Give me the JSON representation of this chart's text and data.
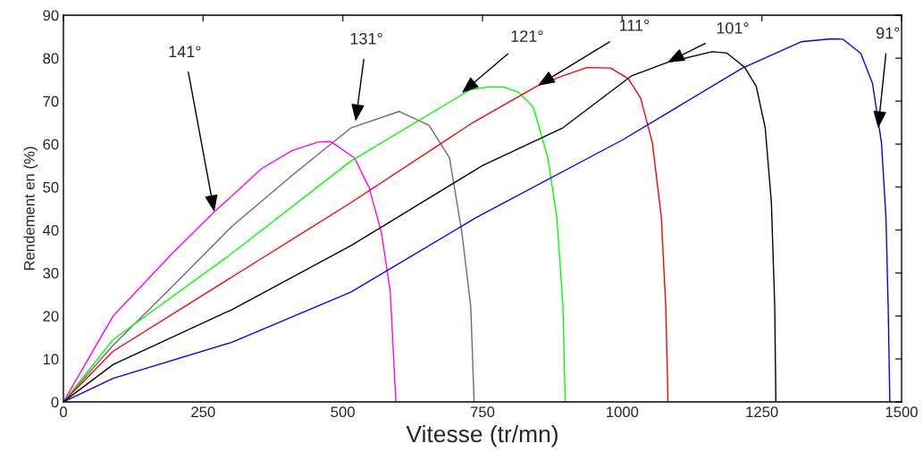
{
  "chart_data": {
    "type": "line",
    "xlabel": "Vitesse (tr/mn)",
    "ylabel": "Rendement en (%)",
    "xlim": [
      0,
      1500
    ],
    "ylim": [
      0,
      90
    ],
    "xticks": [
      0,
      250,
      500,
      750,
      1000,
      1250,
      1500
    ],
    "yticks": [
      0,
      10,
      20,
      30,
      40,
      50,
      60,
      70,
      80,
      90
    ],
    "grid": false,
    "legend": false,
    "marker": "none",
    "line_style": "solid",
    "series": [
      {
        "color": "#ff00ff",
        "x": [
          0,
          89,
          196,
          270,
          355,
          409,
          457,
          478,
          521,
          547,
          569,
          585,
          595
        ],
        "values": [
          0,
          20,
          34.7,
          44.2,
          54.3,
          58.5,
          60.5,
          60.6,
          56.8,
          49.9,
          39.5,
          25.6,
          0
        ]
      },
      {
        "color": "#7f5f7f",
        "x": [
          0,
          89,
          196,
          302,
          409,
          515,
          601,
          654,
          691,
          713,
          729,
          735
        ],
        "values": [
          0,
          13.2,
          27,
          40.9,
          52.7,
          63.8,
          67.6,
          64.4,
          56.8,
          39.5,
          22.2,
          0
        ]
      },
      {
        "color": "#00ff00",
        "x": [
          0,
          89,
          302,
          515,
          729,
          761,
          787,
          814,
          841,
          867,
          883,
          894,
          898
        ],
        "values": [
          0,
          14.5,
          34.6,
          56.1,
          72.7,
          73.3,
          73.3,
          72.1,
          68.6,
          56.8,
          43,
          22.2,
          0
        ]
      },
      {
        "color": "#ff0000",
        "x": [
          0,
          89,
          302,
          515,
          734,
          849,
          894,
          937,
          979,
          1011,
          1033,
          1054,
          1070,
          1078,
          1082
        ],
        "values": [
          0,
          11.8,
          29.1,
          46.4,
          65.1,
          73.6,
          75.9,
          77.8,
          77.7,
          75.2,
          70.7,
          60.3,
          43,
          22.2,
          0
        ]
      },
      {
        "color": "#000000",
        "x": [
          0,
          89,
          302,
          515,
          750,
          894,
          1017,
          1081,
          1161,
          1187,
          1219,
          1240,
          1256,
          1267,
          1273,
          1275
        ],
        "values": [
          0,
          8.7,
          21.5,
          36.4,
          55,
          63.8,
          75.9,
          79,
          81.5,
          81.2,
          77.9,
          73.4,
          63.7,
          46.4,
          22.2,
          0
        ]
      },
      {
        "color": "#0000ff",
        "x": [
          0,
          89,
          302,
          515,
          740,
          1001,
          1214,
          1320,
          1374,
          1395,
          1427,
          1448,
          1464,
          1472,
          1476,
          1479
        ],
        "values": [
          0,
          5.5,
          13.9,
          25.6,
          43,
          61,
          77.6,
          83.8,
          84.5,
          84.4,
          81.1,
          74.1,
          60.3,
          43,
          22.2,
          0
        ]
      }
    ],
    "annotations": [
      {
        "text": "141°",
        "x": 270,
        "y": 44.2
      },
      {
        "text": "131°",
        "x": 523,
        "y": 65.3
      },
      {
        "text": "121°",
        "x": 713,
        "y": 71.9
      },
      {
        "text": "111°",
        "x": 849,
        "y": 73.6
      },
      {
        "text": "101°",
        "x": 1081,
        "y": 79
      },
      {
        "text": "91°",
        "x": 1458,
        "y": 63.7
      }
    ]
  }
}
